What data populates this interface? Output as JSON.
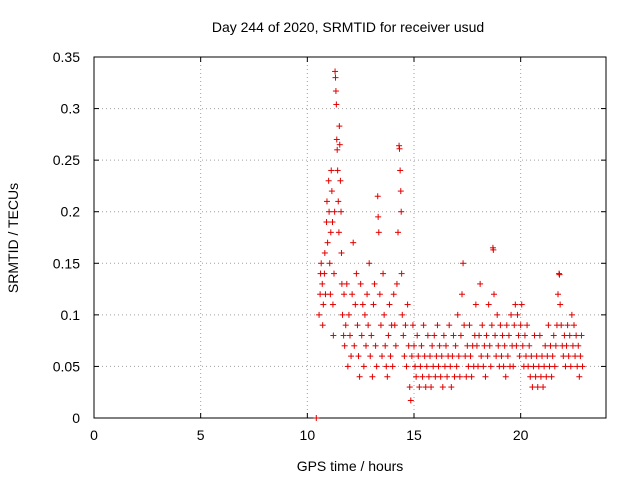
{
  "chart_data": {
    "type": "scatter",
    "title": "Day 244 of 2020, SRMTID for receiver usud",
    "xlabel": "GPS time / hours",
    "ylabel": "SRMTID / TECUs",
    "xlim": [
      0,
      24
    ],
    "ylim": [
      0,
      0.35
    ],
    "xticks": [
      "0",
      "5",
      "10",
      "15",
      "20"
    ],
    "xtick_values": [
      0,
      5,
      10,
      15,
      20
    ],
    "yticks": [
      "0",
      "0.05",
      "0.1",
      "0.15",
      "0.2",
      "0.25",
      "0.3",
      "0.35"
    ],
    "ytick_values": [
      0,
      0.05,
      0.1,
      0.15,
      0.2,
      0.25,
      0.3,
      0.35
    ],
    "grid": true,
    "marker": "plus",
    "marker_color": "#e00000",
    "series": [
      {
        "name": "SRMTID",
        "points": [
          [
            10.42,
            0.0
          ],
          [
            10.55,
            0.1
          ],
          [
            10.6,
            0.12
          ],
          [
            10.62,
            0.14
          ],
          [
            10.65,
            0.15
          ],
          [
            10.7,
            0.13
          ],
          [
            10.72,
            0.09
          ],
          [
            10.75,
            0.11
          ],
          [
            10.8,
            0.14
          ],
          [
            10.82,
            0.16
          ],
          [
            10.85,
            0.12
          ],
          [
            10.9,
            0.19
          ],
          [
            10.92,
            0.21
          ],
          [
            10.95,
            0.17
          ],
          [
            11.0,
            0.23
          ],
          [
            11.02,
            0.2
          ],
          [
            11.05,
            0.15
          ],
          [
            11.08,
            0.12
          ],
          [
            11.1,
            0.18
          ],
          [
            11.12,
            0.24
          ],
          [
            11.15,
            0.22
          ],
          [
            11.18,
            0.19
          ],
          [
            11.2,
            0.11
          ],
          [
            11.22,
            0.08
          ],
          [
            11.25,
            0.14
          ],
          [
            11.28,
            0.2
          ],
          [
            11.3,
            0.336
          ],
          [
            11.32,
            0.33
          ],
          [
            11.34,
            0.317
          ],
          [
            11.36,
            0.304
          ],
          [
            11.38,
            0.27
          ],
          [
            11.4,
            0.26
          ],
          [
            11.42,
            0.24
          ],
          [
            11.45,
            0.21
          ],
          [
            11.48,
            0.18
          ],
          [
            11.5,
            0.283
          ],
          [
            11.52,
            0.265
          ],
          [
            11.55,
            0.23
          ],
          [
            11.58,
            0.2
          ],
          [
            11.6,
            0.16
          ],
          [
            11.62,
            0.13
          ],
          [
            11.65,
            0.1
          ],
          [
            11.7,
            0.08
          ],
          [
            11.72,
            0.12
          ],
          [
            11.75,
            0.07
          ],
          [
            11.8,
            0.09
          ],
          [
            11.85,
            0.13
          ],
          [
            11.9,
            0.05
          ],
          [
            11.95,
            0.1
          ],
          [
            12.0,
            0.08
          ],
          [
            12.05,
            0.06
          ],
          [
            12.1,
            0.12
          ],
          [
            12.15,
            0.17
          ],
          [
            12.2,
            0.07
          ],
          [
            12.25,
            0.11
          ],
          [
            12.3,
            0.14
          ],
          [
            12.35,
            0.09
          ],
          [
            12.4,
            0.06
          ],
          [
            12.45,
            0.04
          ],
          [
            12.5,
            0.13
          ],
          [
            12.55,
            0.08
          ],
          [
            12.6,
            0.11
          ],
          [
            12.65,
            0.05
          ],
          [
            12.7,
            0.1
          ],
          [
            12.75,
            0.07
          ],
          [
            12.8,
            0.12
          ],
          [
            12.85,
            0.09
          ],
          [
            12.9,
            0.15
          ],
          [
            12.95,
            0.06
          ],
          [
            13.0,
            0.08
          ],
          [
            13.05,
            0.04
          ],
          [
            13.1,
            0.11
          ],
          [
            13.15,
            0.13
          ],
          [
            13.2,
            0.07
          ],
          [
            13.25,
            0.05
          ],
          [
            13.3,
            0.215
          ],
          [
            13.32,
            0.195
          ],
          [
            13.35,
            0.18
          ],
          [
            13.4,
            0.12
          ],
          [
            13.45,
            0.09
          ],
          [
            13.5,
            0.06
          ],
          [
            13.55,
            0.14
          ],
          [
            13.6,
            0.1
          ],
          [
            13.65,
            0.07
          ],
          [
            13.7,
            0.05
          ],
          [
            13.75,
            0.04
          ],
          [
            13.8,
            0.08
          ],
          [
            13.85,
            0.11
          ],
          [
            13.9,
            0.06
          ],
          [
            13.95,
            0.09
          ],
          [
            14.0,
            0.05
          ],
          [
            14.05,
            0.12
          ],
          [
            14.1,
            0.09
          ],
          [
            14.15,
            0.07
          ],
          [
            14.2,
            0.13
          ],
          [
            14.25,
            0.18
          ],
          [
            14.3,
            0.264
          ],
          [
            14.32,
            0.261
          ],
          [
            14.35,
            0.24
          ],
          [
            14.38,
            0.22
          ],
          [
            14.4,
            0.2
          ],
          [
            14.42,
            0.14
          ],
          [
            14.45,
            0.1
          ],
          [
            14.5,
            0.08
          ],
          [
            14.55,
            0.06
          ],
          [
            14.6,
            0.09
          ],
          [
            14.65,
            0.05
          ],
          [
            14.7,
            0.11
          ],
          [
            14.75,
            0.07
          ],
          [
            14.8,
            0.03
          ],
          [
            14.85,
            0.017
          ],
          [
            14.9,
            0.06
          ],
          [
            14.95,
            0.09
          ],
          [
            15.0,
            0.07
          ],
          [
            15.05,
            0.05
          ],
          [
            15.1,
            0.04
          ],
          [
            15.15,
            0.08
          ],
          [
            15.2,
            0.06
          ],
          [
            15.25,
            0.03
          ],
          [
            15.3,
            0.05
          ],
          [
            15.35,
            0.07
          ],
          [
            15.4,
            0.04
          ],
          [
            15.45,
            0.09
          ],
          [
            15.5,
            0.06
          ],
          [
            15.55,
            0.03
          ],
          [
            15.6,
            0.05
          ],
          [
            15.65,
            0.08
          ],
          [
            15.7,
            0.04
          ],
          [
            15.75,
            0.06
          ],
          [
            15.8,
            0.03
          ],
          [
            15.85,
            0.07
          ],
          [
            15.9,
            0.05
          ],
          [
            15.95,
            0.08
          ],
          [
            16.0,
            0.04
          ],
          [
            16.05,
            0.06
          ],
          [
            16.1,
            0.09
          ],
          [
            16.15,
            0.05
          ],
          [
            16.2,
            0.07
          ],
          [
            16.25,
            0.04
          ],
          [
            16.3,
            0.06
          ],
          [
            16.35,
            0.03
          ],
          [
            16.4,
            0.08
          ],
          [
            16.45,
            0.05
          ],
          [
            16.5,
            0.07
          ],
          [
            16.55,
            0.04
          ],
          [
            16.6,
            0.06
          ],
          [
            16.65,
            0.09
          ],
          [
            16.7,
            0.05
          ],
          [
            16.75,
            0.03
          ],
          [
            16.8,
            0.06
          ],
          [
            16.85,
            0.08
          ],
          [
            16.9,
            0.04
          ],
          [
            16.95,
            0.07
          ],
          [
            17.0,
            0.05
          ],
          [
            17.05,
            0.1
          ],
          [
            17.1,
            0.06
          ],
          [
            17.15,
            0.04
          ],
          [
            17.2,
            0.08
          ],
          [
            17.25,
            0.12
          ],
          [
            17.3,
            0.15
          ],
          [
            17.35,
            0.09
          ],
          [
            17.4,
            0.06
          ],
          [
            17.45,
            0.04
          ],
          [
            17.5,
            0.07
          ],
          [
            17.55,
            0.05
          ],
          [
            17.6,
            0.09
          ],
          [
            17.65,
            0.06
          ],
          [
            17.7,
            0.04
          ],
          [
            17.75,
            0.07
          ],
          [
            17.8,
            0.05
          ],
          [
            17.85,
            0.08
          ],
          [
            17.9,
            0.11
          ],
          [
            17.95,
            0.07
          ],
          [
            18.0,
            0.05
          ],
          [
            18.05,
            0.08
          ],
          [
            18.1,
            0.13
          ],
          [
            18.15,
            0.06
          ],
          [
            18.2,
            0.09
          ],
          [
            18.25,
            0.05
          ],
          [
            18.3,
            0.07
          ],
          [
            18.35,
            0.04
          ],
          [
            18.4,
            0.08
          ],
          [
            18.45,
            0.06
          ],
          [
            18.5,
            0.11
          ],
          [
            18.55,
            0.07
          ],
          [
            18.6,
            0.05
          ],
          [
            18.65,
            0.09
          ],
          [
            18.7,
            0.165
          ],
          [
            18.72,
            0.163
          ],
          [
            18.75,
            0.12
          ],
          [
            18.8,
            0.08
          ],
          [
            18.85,
            0.06
          ],
          [
            18.9,
            0.1
          ],
          [
            18.95,
            0.07
          ],
          [
            19.0,
            0.05
          ],
          [
            19.05,
            0.09
          ],
          [
            19.1,
            0.06
          ],
          [
            19.15,
            0.08
          ],
          [
            19.2,
            0.05
          ],
          [
            19.25,
            0.07
          ],
          [
            19.3,
            0.04
          ],
          [
            19.35,
            0.09
          ],
          [
            19.4,
            0.06
          ],
          [
            19.45,
            0.08
          ],
          [
            19.5,
            0.05
          ],
          [
            19.55,
            0.1
          ],
          [
            19.6,
            0.07
          ],
          [
            19.65,
            0.05
          ],
          [
            19.7,
            0.09
          ],
          [
            19.75,
            0.11
          ],
          [
            19.8,
            0.07
          ],
          [
            19.85,
            0.1
          ],
          [
            19.9,
            0.08
          ],
          [
            19.95,
            0.06
          ],
          [
            20.0,
            0.09
          ],
          [
            20.05,
            0.11
          ],
          [
            20.1,
            0.07
          ],
          [
            20.15,
            0.05
          ],
          [
            20.2,
            0.08
          ],
          [
            20.25,
            0.06
          ],
          [
            20.3,
            0.09
          ],
          [
            20.35,
            0.05
          ],
          [
            20.4,
            0.07
          ],
          [
            20.45,
            0.04
          ],
          [
            20.5,
            0.06
          ],
          [
            20.55,
            0.03
          ],
          [
            20.6,
            0.05
          ],
          [
            20.65,
            0.08
          ],
          [
            20.7,
            0.04
          ],
          [
            20.75,
            0.06
          ],
          [
            20.8,
            0.03
          ],
          [
            20.85,
            0.05
          ],
          [
            20.9,
            0.08
          ],
          [
            20.95,
            0.04
          ],
          [
            21.0,
            0.06
          ],
          [
            21.05,
            0.03
          ],
          [
            21.1,
            0.05
          ],
          [
            21.15,
            0.07
          ],
          [
            21.2,
            0.04
          ],
          [
            21.25,
            0.06
          ],
          [
            21.3,
            0.09
          ],
          [
            21.35,
            0.05
          ],
          [
            21.4,
            0.07
          ],
          [
            21.45,
            0.04
          ],
          [
            21.5,
            0.06
          ],
          [
            21.55,
            0.08
          ],
          [
            21.6,
            0.05
          ],
          [
            21.65,
            0.07
          ],
          [
            21.7,
            0.09
          ],
          [
            21.75,
            0.12
          ],
          [
            21.8,
            0.14
          ],
          [
            21.82,
            0.139
          ],
          [
            21.85,
            0.11
          ],
          [
            21.9,
            0.09
          ],
          [
            21.95,
            0.07
          ],
          [
            22.0,
            0.06
          ],
          [
            22.05,
            0.08
          ],
          [
            22.1,
            0.05
          ],
          [
            22.15,
            0.07
          ],
          [
            22.2,
            0.09
          ],
          [
            22.25,
            0.06
          ],
          [
            22.3,
            0.08
          ],
          [
            22.35,
            0.05
          ],
          [
            22.4,
            0.1
          ],
          [
            22.45,
            0.07
          ],
          [
            22.5,
            0.09
          ],
          [
            22.55,
            0.06
          ],
          [
            22.6,
            0.08
          ],
          [
            22.65,
            0.05
          ],
          [
            22.7,
            0.07
          ],
          [
            22.75,
            0.04
          ],
          [
            22.8,
            0.06
          ],
          [
            22.85,
            0.08
          ],
          [
            22.9,
            0.05
          ]
        ]
      }
    ]
  }
}
